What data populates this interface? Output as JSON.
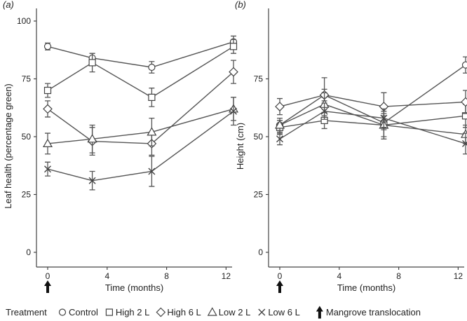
{
  "chart_data": [
    {
      "type": "line",
      "panel_label": "(a)",
      "xlabel": "Time (months)",
      "ylabel": "Leaf health (percentage green)",
      "xlim": [
        -0.5,
        13.5
      ],
      "ylim": [
        0,
        100
      ],
      "xticks": [
        0,
        4,
        8,
        12
      ],
      "yticks": [
        0,
        25,
        50,
        75,
        100
      ],
      "x": [
        0,
        3,
        7,
        12.5
      ],
      "series": [
        {
          "name": "Control",
          "marker": "circle",
          "values": [
            89,
            84,
            80,
            91
          ],
          "err": [
            1.5,
            2,
            2.5,
            2.5
          ]
        },
        {
          "name": "High 2 L",
          "marker": "square",
          "values": [
            70,
            82,
            67,
            89
          ],
          "err": [
            3,
            4,
            4,
            3
          ]
        },
        {
          "name": "High 6 L",
          "marker": "diamond",
          "values": [
            62,
            48,
            47,
            78
          ],
          "err": [
            3.5,
            6,
            5,
            5
          ]
        },
        {
          "name": "Low 2 L",
          "marker": "triangle",
          "values": [
            47,
            49,
            52,
            62
          ],
          "err": [
            4.5,
            6,
            6,
            5
          ]
        },
        {
          "name": "Low 6 L",
          "marker": "x",
          "values": [
            36,
            31,
            35,
            61
          ],
          "err": [
            3,
            4,
            6.5,
            6
          ]
        }
      ],
      "annotation": {
        "type": "arrow",
        "at_x": 0
      }
    },
    {
      "type": "line",
      "panel_label": "(b)",
      "xlabel": "Time (months)",
      "ylabel": "Height (cm)",
      "xlim": [
        -0.5,
        13.5
      ],
      "ylim": [
        0,
        100
      ],
      "xticks": [
        0,
        4,
        8,
        12
      ],
      "yticks": [
        0,
        25,
        50,
        75
      ],
      "x": [
        0,
        3,
        7,
        12.5
      ],
      "series": [
        {
          "name": "Control",
          "marker": "circle",
          "values": [
            55,
            68,
            56,
            81
          ],
          "err": [
            2,
            2.5,
            3,
            3.5
          ]
        },
        {
          "name": "High 2 L",
          "marker": "square",
          "values": [
            54,
            57,
            55,
            59
          ],
          "err": [
            3,
            3.5,
            5,
            5
          ]
        },
        {
          "name": "High 6 L",
          "marker": "diamond",
          "values": [
            63,
            68,
            63,
            65
          ],
          "err": [
            3.5,
            7.5,
            6,
            5
          ]
        },
        {
          "name": "Low 2 L",
          "marker": "triangle",
          "values": [
            55,
            64,
            55,
            51
          ],
          "err": [
            3,
            5,
            6,
            4
          ]
        },
        {
          "name": "Low 6 L",
          "marker": "x",
          "values": [
            49,
            61,
            58,
            47
          ],
          "err": [
            2.5,
            3.5,
            4,
            4.5
          ]
        }
      ],
      "annotation": {
        "type": "arrow",
        "at_x": 0
      }
    }
  ],
  "legend": {
    "title": "Treatment",
    "placement": "bottom",
    "items": [
      {
        "label": "Control",
        "marker": "circle"
      },
      {
        "label": "High 2 L",
        "marker": "square"
      },
      {
        "label": "High 6 L",
        "marker": "diamond"
      },
      {
        "label": "Low 2 L",
        "marker": "triangle"
      },
      {
        "label": "Low 6 L",
        "marker": "x"
      },
      {
        "label": "Mangrove translocation",
        "marker": "arrow"
      }
    ]
  },
  "colors": {
    "line": "#555555",
    "axis": "#444444",
    "marker_fill": "#ffffff"
  }
}
